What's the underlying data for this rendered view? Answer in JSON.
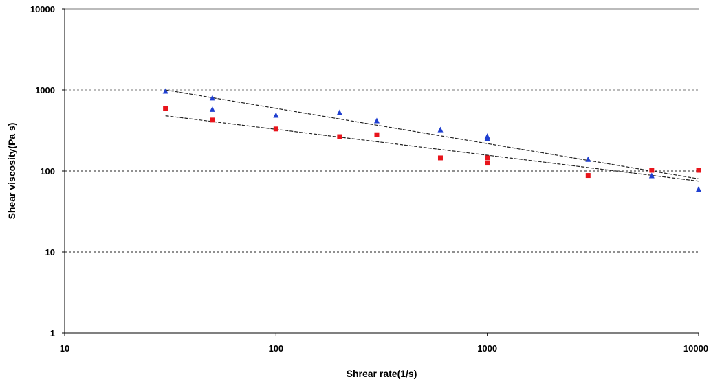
{
  "chart_data": {
    "type": "scatter",
    "title": "",
    "xlabel": "Shrear rate(1/s)",
    "ylabel": "Shear viscosity(Pa s)",
    "x_scale": "log",
    "y_scale": "log",
    "xlim": [
      10,
      10000
    ],
    "ylim": [
      1,
      10000
    ],
    "x_ticks": [
      "10",
      "100",
      "1000",
      "10000"
    ],
    "y_ticks": [
      "1",
      "10",
      "100",
      "1000",
      "10000"
    ],
    "grid": "horizontal dashed",
    "legend": "none",
    "series": [
      {
        "marker": "triangle",
        "color": "#1f3fd0",
        "points": [
          [
            30,
            970
          ],
          [
            50,
            800
          ],
          [
            50,
            580
          ],
          [
            100,
            490
          ],
          [
            200,
            530
          ],
          [
            300,
            420
          ],
          [
            600,
            325
          ],
          [
            1000,
            270
          ],
          [
            1000,
            255
          ],
          [
            3000,
            140
          ],
          [
            6000,
            88
          ],
          [
            10000,
            60
          ]
        ],
        "trend": [
          [
            30,
            1000
          ],
          [
            10000,
            80
          ]
        ]
      },
      {
        "marker": "square",
        "color": "#e8141b",
        "points": [
          [
            30,
            590
          ],
          [
            50,
            425
          ],
          [
            100,
            330
          ],
          [
            200,
            265
          ],
          [
            300,
            280
          ],
          [
            600,
            145
          ],
          [
            1000,
            145
          ],
          [
            1000,
            125
          ],
          [
            3000,
            88
          ],
          [
            6000,
            102
          ],
          [
            10000,
            102
          ]
        ],
        "trend": [
          [
            30,
            480
          ],
          [
            10000,
            75
          ]
        ]
      }
    ]
  }
}
